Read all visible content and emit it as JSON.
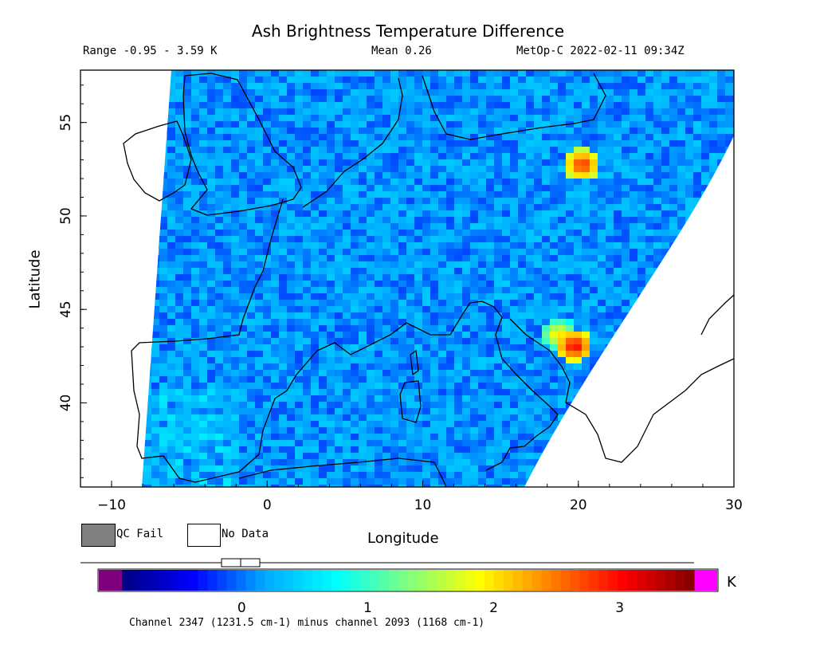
{
  "chart_data": {
    "type": "heatmap",
    "title": "Ash Brightness Temperature Difference",
    "range_label": "Range -0.95 - 3.59 K",
    "mean_label": "Mean 0.26",
    "satellite_label": "MetOp-C 2022-02-11 09:34Z",
    "xlabel": "Longitude",
    "ylabel": "Latitude",
    "xlim": [
      -12,
      30
    ],
    "ylim": [
      35.5,
      57.8
    ],
    "x_ticks": [
      -10,
      0,
      10,
      20,
      30
    ],
    "y_ticks": [
      40,
      45,
      50,
      55
    ],
    "value_range": [
      -0.95,
      3.59
    ],
    "mean": 0.26,
    "grid": false,
    "hotspots": [
      {
        "lon": 19.5,
        "lat": 43.2,
        "value": 3.2
      },
      {
        "lon": 18.5,
        "lat": 43.8,
        "value": 2.2
      },
      {
        "lon": 20.0,
        "lat": 52.9,
        "value": 3.0
      }
    ],
    "colorbar": {
      "ticks": [
        0,
        1,
        2,
        3
      ],
      "unit": "K",
      "range": [
        -0.95,
        3.59
      ],
      "colors": [
        "#7f007f",
        "#000080",
        "#0000ff",
        "#00aaff",
        "#00ffff",
        "#80ff80",
        "#ffff00",
        "#ff8000",
        "#ff0000",
        "#800000",
        "#ff00ff"
      ]
    },
    "legend": [
      {
        "label": "QC Fail",
        "color": "#808080"
      },
      {
        "label": "No Data",
        "color": "#ffffff"
      }
    ],
    "channel_note": "Channel 2347 (1231.5 cm-1) minus channel 2093 (1168 cm-1)"
  }
}
